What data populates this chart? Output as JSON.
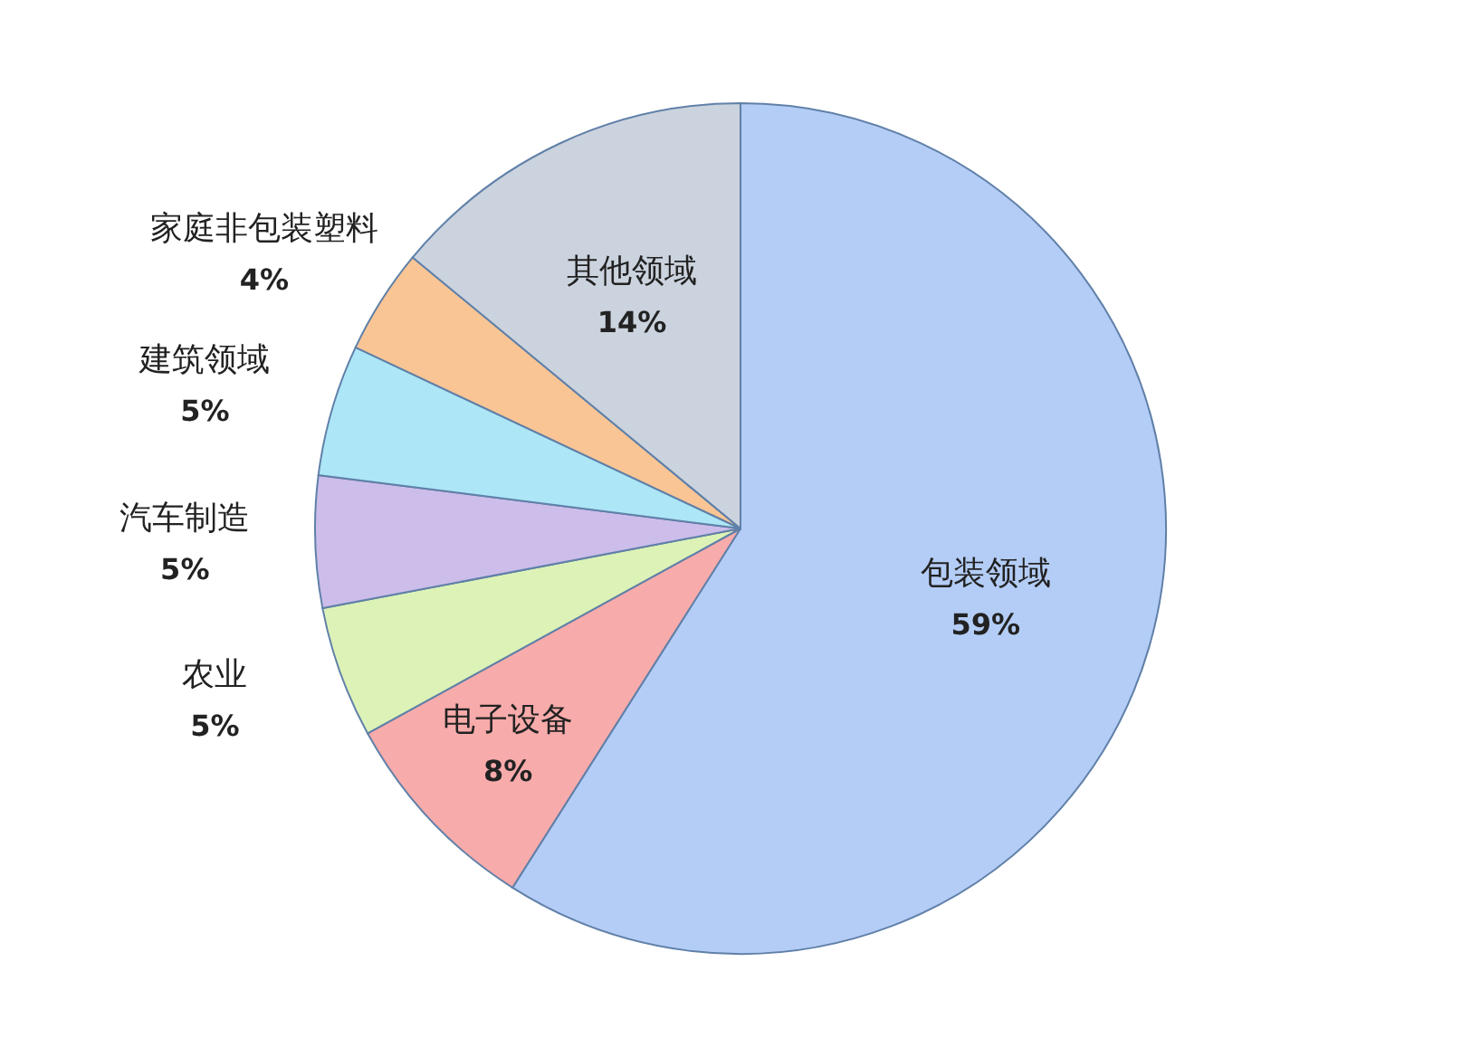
{
  "chart_data": {
    "type": "pie",
    "categories": [
      "包装领域",
      "电子设备",
      "农业",
      "汽车制造",
      "建筑领域",
      "家庭非包装塑料",
      "其他领域"
    ],
    "values": [
      59,
      8,
      5,
      5,
      5,
      4,
      14
    ],
    "value_labels": [
      "59%",
      "8%",
      "5%",
      "5%",
      "5%",
      "4%",
      "14%"
    ],
    "colors": [
      "#b4cdf6",
      "#f8abab",
      "#ddf2b6",
      "#cdbdea",
      "#ade6f6",
      "#f9c595",
      "#cbd3de"
    ]
  }
}
